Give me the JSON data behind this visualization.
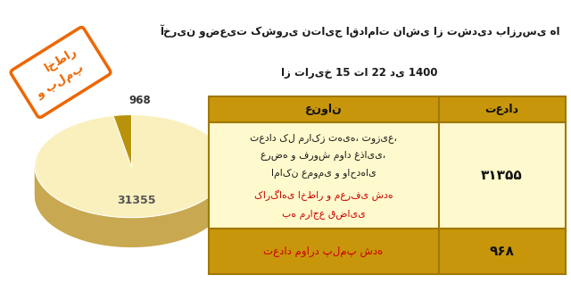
{
  "title_line1": "آخرین وضعیت کشوری نتایج اقدامات ناشی از تشدید بازرسی ها",
  "title_line2": "از تاریخ 15 تا 22 دی 1400",
  "pie_values": [
    31355,
    968
  ],
  "pie_colors_top": [
    "#FAF0BE",
    "#B8920A"
  ],
  "pie_colors_side": [
    "#C8A850",
    "#8B6508"
  ],
  "pie_label_large": "31355",
  "pie_label_small": "968",
  "badge_text1": "اخطار",
  "badge_text2": "و پلمپ",
  "badge_color": "#EE6600",
  "table_header_bg": "#C8960A",
  "table_row1_bg": "#FFFACD",
  "table_row2_bg": "#C8960A",
  "table_border_color": "#A07808",
  "col_header_title": "عنوان",
  "col_header_count": "تعداد",
  "row1_line1": "تعداد کل مراکز تهیه، توزیع،",
  "row1_line2": "عرضه و فروش مواد غذایی،",
  "row1_line3": "اماکن عمومی و واحدهای",
  "row1_line4_black": "کارگاهی ",
  "row1_line4_red": "اخطار و معرفی شده",
  "row1_line5_red": "به مراجع قضایی",
  "row1_count": "۳۱۳۵۵",
  "row2_text_black": "تعداد موارد ",
  "row2_text_red": "پلمپ شده",
  "row2_count": "۹۶۸",
  "bg_color": "#FFFFFF",
  "text_black": "#1a1a1a",
  "text_red": "#CC0000"
}
